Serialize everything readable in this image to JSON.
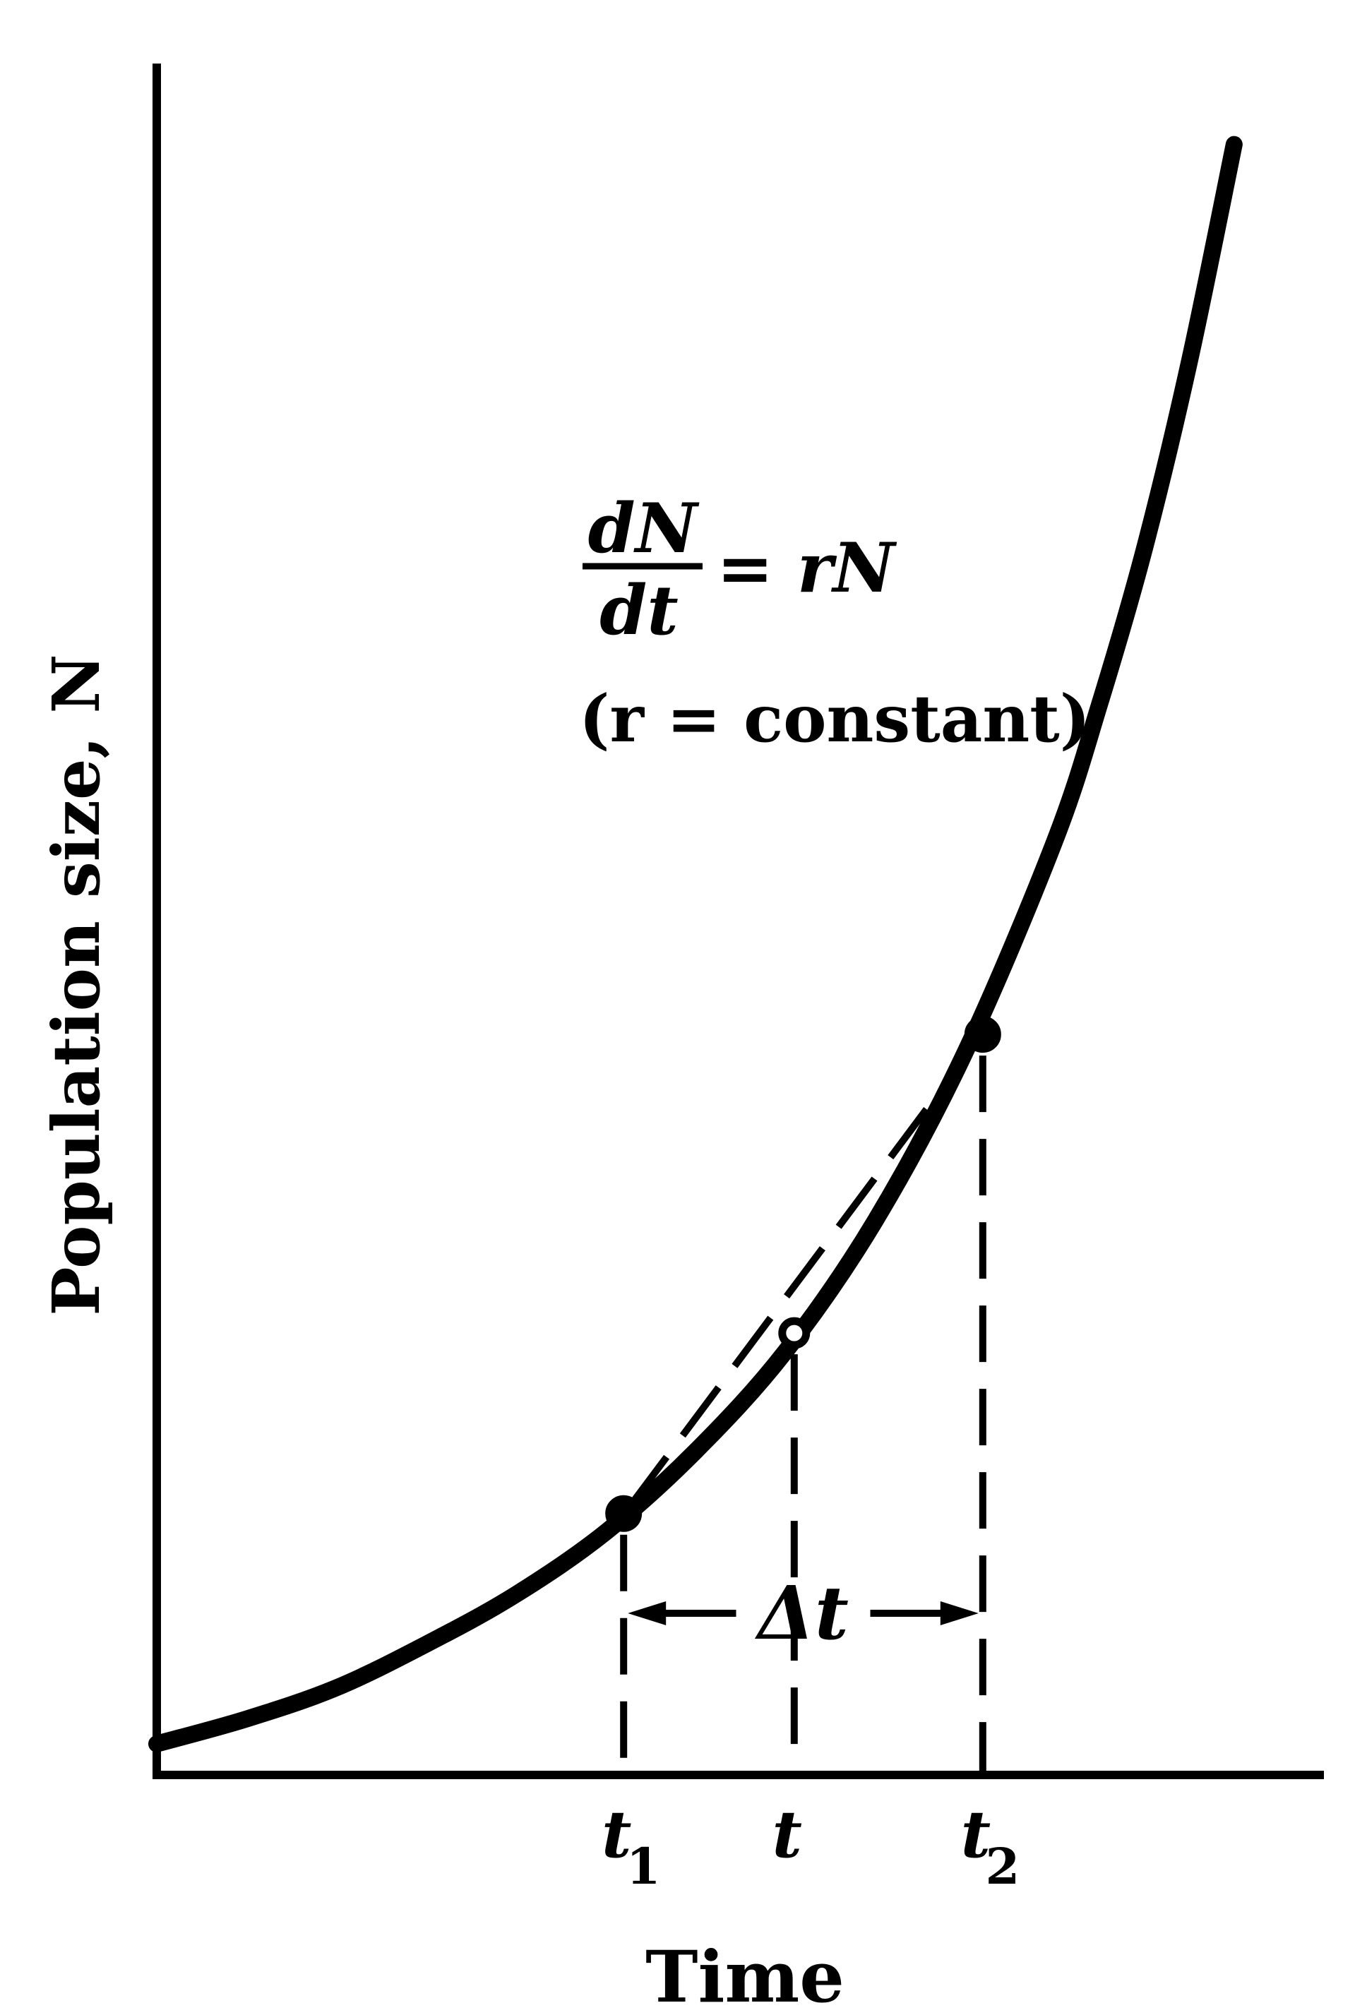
{
  "chart_data": {
    "type": "line",
    "ylabel": "Population size, N",
    "xlabel": "Time",
    "grid": false,
    "series": [
      {
        "x": [
          0,
          1,
          2,
          3,
          4,
          5,
          6,
          7,
          8,
          9,
          10,
          10.5,
          11,
          11.5,
          12
        ],
        "values": [
          0.05,
          0.09,
          0.14,
          0.21,
          0.29,
          0.39,
          0.52,
          0.68,
          0.89,
          1.16,
          1.5,
          1.72,
          1.97,
          2.27,
          2.62
        ]
      }
    ],
    "xlim": [
      0,
      13
    ],
    "ylim": [
      0,
      2.75
    ],
    "points": [
      {
        "label": "t",
        "sub": "1",
        "x": 5.2,
        "y": 0.42,
        "marker": "filled"
      },
      {
        "label": "t",
        "sub": "",
        "x": 7.1,
        "y": 0.71,
        "marker": "open"
      },
      {
        "label": "t",
        "sub": "2",
        "x": 9.2,
        "y": 1.19,
        "marker": "filled"
      }
    ],
    "interval_label": "Δt",
    "annotation": {
      "equation_numerator": "dN",
      "equation_denominator": "dt",
      "equation_rhs": "= rN",
      "condition": "(r = constant)"
    }
  }
}
